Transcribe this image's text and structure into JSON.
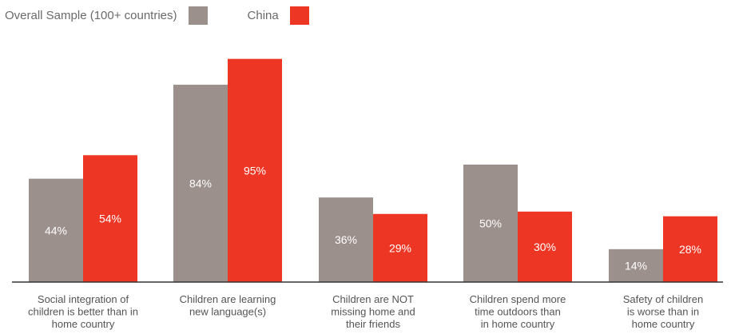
{
  "chart_data": {
    "type": "bar",
    "categories": [
      [
        "Social integration of",
        "children is better than in",
        "home country"
      ],
      [
        "Children are learning",
        "new language(s)"
      ],
      [
        "Children are NOT",
        "missing home and",
        "their friends"
      ],
      [
        "Children spend more",
        "time outdoors than",
        "in home country"
      ],
      [
        "Safety of children",
        "is worse than in",
        "home country"
      ]
    ],
    "series": [
      {
        "name": "Overall Sample (100+ countries)",
        "color": "#9c908d",
        "values": [
          44,
          84,
          36,
          50,
          14
        ],
        "value_labels": [
          "44%",
          "84%",
          "36%",
          "50%",
          "14%"
        ]
      },
      {
        "name": "China",
        "color": "#ee3624",
        "values": [
          54,
          95,
          29,
          30,
          28
        ],
        "value_labels": [
          "54%",
          "95%",
          "29%",
          "30%",
          "28%"
        ]
      }
    ],
    "ylim": [
      0,
      100
    ],
    "legend_position": "top-left",
    "grid": false
  }
}
